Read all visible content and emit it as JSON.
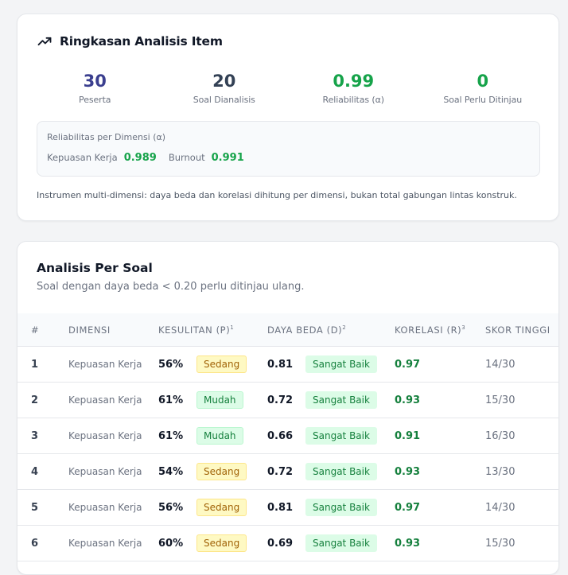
{
  "summary": {
    "title": "Ringkasan Analisis Item",
    "title_icon": "trending-up-icon",
    "stats": [
      {
        "value": "30",
        "label": "Peserta",
        "color": "#3b3f8f"
      },
      {
        "value": "20",
        "label": "Soal Dianalisis",
        "color": "#334155"
      },
      {
        "value": "0.99",
        "label": "Reliabilitas (α)",
        "color": "#16a34a"
      },
      {
        "value": "0",
        "label": "Soal Perlu Ditinjau",
        "color": "#16a34a"
      }
    ],
    "dimension_box": {
      "title": "Reliabilitas per Dimensi (α)",
      "items": [
        {
          "name": "Kepuasan Kerja",
          "value": "0.989"
        },
        {
          "name": "Burnout",
          "value": "0.991"
        }
      ]
    },
    "note": "Instrumen multi-dimensi: daya beda dan korelasi dihitung per dimensi, bukan total gabungan lintas konstruk."
  },
  "table": {
    "title": "Analisis Per Soal",
    "subtitle": "Soal dengan daya beda < 0.20 perlu ditinjau ulang.",
    "headers": {
      "no": "#",
      "dimensi": "Dimensi",
      "kesulitan": "Kesulitan (P)",
      "kesulitan_sup": "1",
      "daya_beda": "Daya Beda (D)",
      "daya_beda_sup": "2",
      "korelasi": "Korelasi (r)",
      "korelasi_sup": "3",
      "skor_tinggi": "Skor Tinggi"
    },
    "rows": [
      {
        "no": "1",
        "dimensi": "Kepuasan Kerja",
        "p": "56%",
        "p_label": "Sedang",
        "d": "0.81",
        "d_label": "Sangat Baik",
        "r": "0.97",
        "skor": "14/30"
      },
      {
        "no": "2",
        "dimensi": "Kepuasan Kerja",
        "p": "61%",
        "p_label": "Mudah",
        "d": "0.72",
        "d_label": "Sangat Baik",
        "r": "0.93",
        "skor": "15/30"
      },
      {
        "no": "3",
        "dimensi": "Kepuasan Kerja",
        "p": "61%",
        "p_label": "Mudah",
        "d": "0.66",
        "d_label": "Sangat Baik",
        "r": "0.91",
        "skor": "16/30"
      },
      {
        "no": "4",
        "dimensi": "Kepuasan Kerja",
        "p": "54%",
        "p_label": "Sedang",
        "d": "0.72",
        "d_label": "Sangat Baik",
        "r": "0.93",
        "skor": "13/30"
      },
      {
        "no": "5",
        "dimensi": "Kepuasan Kerja",
        "p": "56%",
        "p_label": "Sedang",
        "d": "0.81",
        "d_label": "Sangat Baik",
        "r": "0.97",
        "skor": "14/30"
      },
      {
        "no": "6",
        "dimensi": "Kepuasan Kerja",
        "p": "60%",
        "p_label": "Sedang",
        "d": "0.69",
        "d_label": "Sangat Baik",
        "r": "0.93",
        "skor": "15/30"
      }
    ]
  }
}
